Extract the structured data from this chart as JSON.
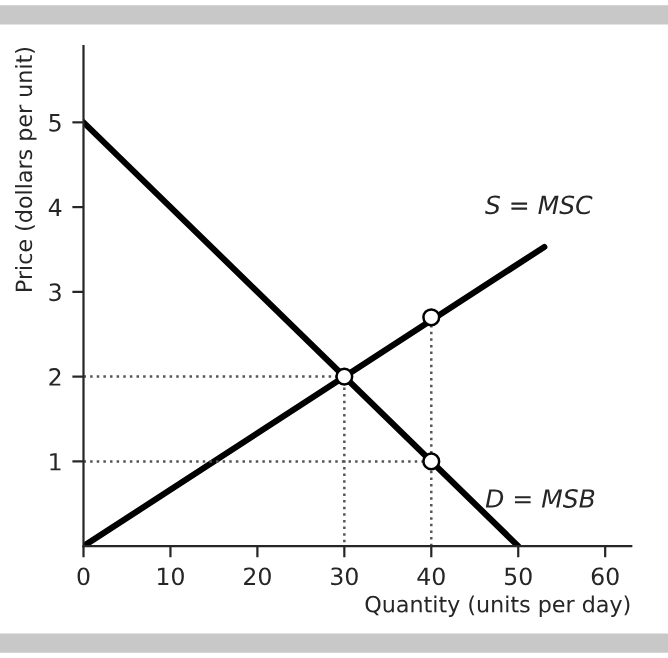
{
  "chart_data": {
    "type": "line",
    "xlabel": "Quantity (units per day)",
    "ylabel": "Price (dollars per unit)",
    "xlim": [
      0,
      63
    ],
    "ylim": [
      0,
      5.9
    ],
    "xticks": [
      0,
      10,
      20,
      30,
      40,
      50,
      60
    ],
    "yticks": [
      1,
      2,
      3,
      4,
      5
    ],
    "grid": false,
    "legend": false,
    "series": [
      {
        "name": "S = MSC",
        "color": "#000000",
        "x": [
          0,
          53
        ],
        "values": [
          0,
          3.53
        ],
        "line_style": "solid",
        "marker": "none"
      },
      {
        "name": "D = MSB",
        "color": "#000000",
        "x": [
          0,
          50
        ],
        "values": [
          5,
          0
        ],
        "line_style": "solid",
        "marker": "none"
      },
      {
        "color": "#555555",
        "x": [
          0,
          30,
          30
        ],
        "values": [
          2,
          2,
          0
        ],
        "line_style": "dotted",
        "marker": "none"
      },
      {
        "color": "#555555",
        "x": [
          0,
          40
        ],
        "values": [
          1,
          1
        ],
        "line_style": "dotted",
        "marker": "none"
      },
      {
        "color": "#555555",
        "x": [
          40,
          40
        ],
        "values": [
          0,
          2.7
        ],
        "line_style": "dotted",
        "marker": "none"
      },
      {
        "color": "#000000",
        "x": [
          30,
          40,
          40
        ],
        "values": [
          2,
          2.7,
          1
        ],
        "type": "scatter",
        "marker": "circle"
      }
    ]
  }
}
